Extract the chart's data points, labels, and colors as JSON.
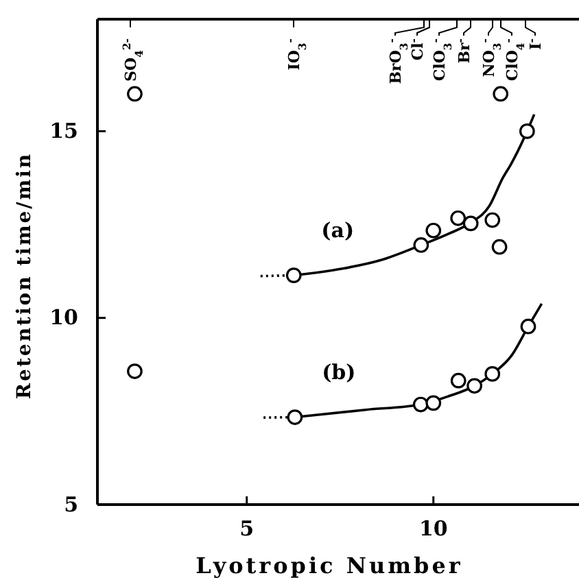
{
  "chart_data": {
    "type": "scatter",
    "xlabel": "Lyotropic Number",
    "ylabel": "Retention time/min",
    "xlim": [
      1,
      13.9
    ],
    "ylim": [
      5,
      18
    ],
    "xticks": [
      5,
      10
    ],
    "yticks": [
      5,
      10,
      15
    ],
    "grid": false,
    "marker": "circle",
    "annotations": [
      "SO$_{4}$$^{2-}$",
      "IO$_{3}$$^{-}$",
      "BrO$_{3}$$^{-}$",
      "Cl$^{-}$",
      "ClO$_{3}$$^{-}$",
      "Br$^{-}$",
      "NO$_{3}$$^{-}$",
      "ClO$_{4}$$^{-}$",
      "I$^{-}$"
    ],
    "series": [
      {
        "name": "(a)",
        "color": "#000000",
        "x": [
          2,
          6.26,
          9.67,
          10.0,
          10.66,
          11.0,
          11.58,
          11.77,
          11.8,
          12.51
        ],
        "values": [
          16.0,
          11.14,
          11.95,
          12.34,
          12.67,
          12.53,
          12.62,
          11.9,
          16.0,
          15.0
        ]
      },
      {
        "name": "(b)",
        "color": "#000000",
        "x": [
          2,
          6.29,
          9.66,
          10.0,
          10.67,
          11.1,
          11.58,
          12.54
        ],
        "values": [
          8.57,
          7.34,
          7.68,
          7.72,
          8.32,
          8.18,
          8.5,
          9.77
        ]
      },
      {
        "type": "line",
        "color": "#000000",
        "line_style": "solid",
        "marker": "none",
        "x": [
          6.26,
          7.57,
          8.6,
          9.67,
          10.4,
          11.0,
          11.5,
          11.86,
          12.08,
          12.51,
          12.7
        ],
        "values": [
          11.14,
          11.32,
          11.55,
          11.95,
          12.25,
          12.55,
          13.0,
          13.75,
          14.12,
          15.0,
          15.45
        ]
      },
      {
        "type": "line",
        "color": "#000000",
        "line_style": "dotted",
        "marker": "none",
        "x": [
          5.37,
          6.26
        ],
        "values": [
          11.12,
          11.14
        ]
      },
      {
        "type": "line",
        "color": "#000000",
        "line_style": "solid",
        "marker": "none",
        "x": [
          6.29,
          8.19,
          9.66,
          10.4,
          11.1,
          11.58,
          12.1,
          12.54,
          12.9
        ],
        "values": [
          7.34,
          7.54,
          7.68,
          7.9,
          8.18,
          8.5,
          9.0,
          9.77,
          10.38
        ]
      },
      {
        "type": "line",
        "color": "#000000",
        "line_style": "dotted",
        "marker": "none",
        "x": [
          5.45,
          6.29
        ],
        "values": [
          7.33,
          7.34
        ]
      }
    ]
  }
}
